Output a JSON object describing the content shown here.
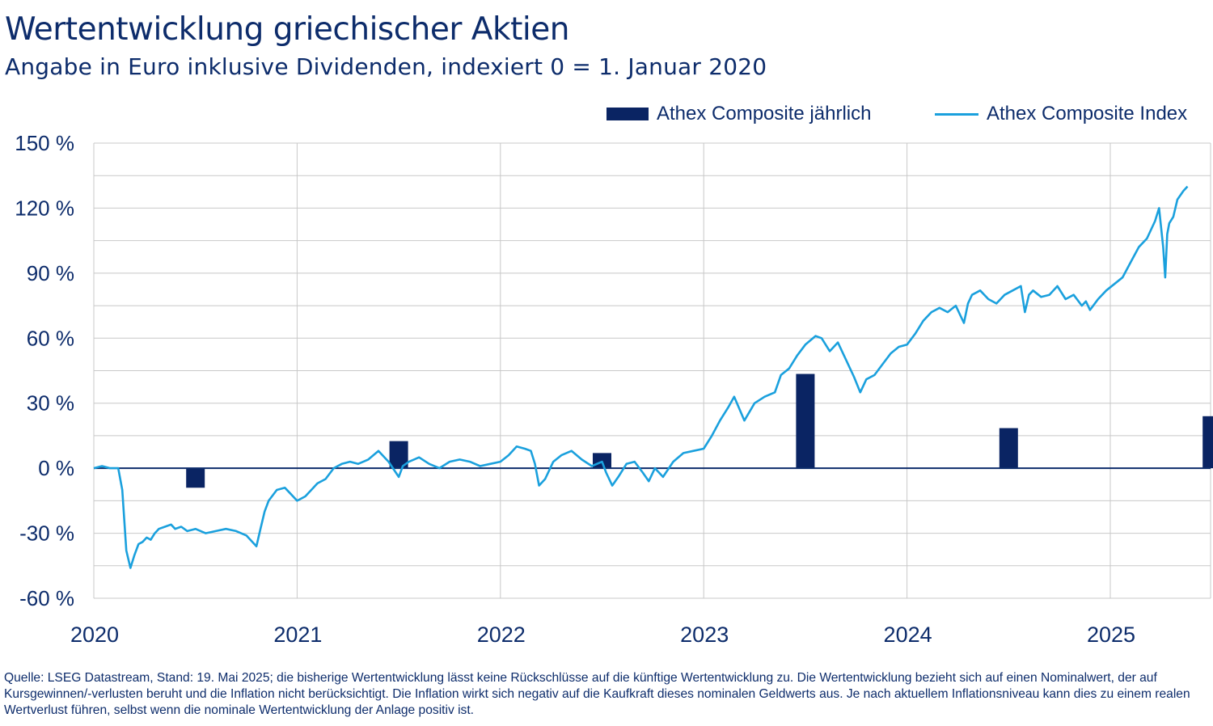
{
  "header": {
    "title": "Wertentwicklung griechischer Aktien",
    "subtitle": "Angabe in Euro inklusive Dividenden, indexiert 0 = 1. Januar 2020"
  },
  "legend": {
    "bar_label": "Athex Composite jährlich",
    "line_label": "Athex Composite Index"
  },
  "colors": {
    "bars": "#0a2463",
    "line": "#1aa0dd",
    "text": "#0d2c6b",
    "grid": "#c8c8c8",
    "zero_line": "#0d2c6b"
  },
  "footnote": "Quelle: LSEG Datastream, Stand: 19. Mai 2025; die bisherige Wertentwicklung lässt keine Rückschlüsse auf die künftige Wertentwicklung zu. Die Wertentwicklung bezieht sich auf einen Nominalwert, der auf Kursgewinnen/-verlusten beruht und die Inflation nicht berücksichtigt. Die Inflation wirkt sich negativ auf die Kaufkraft dieses nominalen Geldwerts aus. Je nach aktuellem Inflationsniveau kann dies zu einem realen Wertverlust führen, selbst wenn die nominale Wertentwicklung der Anlage positiv ist.",
  "chart_data": {
    "type": "bar+line",
    "ylim": [
      -60,
      150
    ],
    "y_ticks": [
      150,
      120,
      90,
      60,
      30,
      0,
      -30,
      -60
    ],
    "y_tick_labels": [
      "150 %",
      "120 %",
      "90 %",
      "60 %",
      "30 %",
      "0 %",
      "-30 %",
      "-60 %"
    ],
    "y_minor_gridlines": [
      135,
      105,
      75,
      45,
      15,
      -15,
      -45
    ],
    "xlim": [
      2020.0,
      2025.5
    ],
    "x_ticks": [
      "2020",
      "2021",
      "2022",
      "2023",
      "2024",
      "2025"
    ],
    "grid": true,
    "legend_position": "top-right",
    "bars": {
      "name": "Athex Composite jährlich",
      "x": [
        "2020",
        "2021",
        "2022",
        "2023",
        "2024",
        "2025"
      ],
      "values": [
        -9,
        12.5,
        7,
        43.5,
        18.5,
        24
      ]
    },
    "line": {
      "name": "Athex Composite Index",
      "x": [
        2020.0,
        2020.04,
        2020.08,
        2020.12,
        2020.14,
        2020.16,
        2020.18,
        2020.2,
        2020.22,
        2020.24,
        2020.26,
        2020.28,
        2020.3,
        2020.32,
        2020.35,
        2020.38,
        2020.4,
        2020.43,
        2020.46,
        2020.5,
        2020.55,
        2020.6,
        2020.65,
        2020.7,
        2020.75,
        2020.8,
        2020.82,
        2020.84,
        2020.86,
        2020.9,
        2020.94,
        2020.97,
        2021.0,
        2021.04,
        2021.07,
        2021.1,
        2021.14,
        2021.18,
        2021.22,
        2021.26,
        2021.3,
        2021.35,
        2021.4,
        2021.45,
        2021.5,
        2021.52,
        2021.55,
        2021.6,
        2021.65,
        2021.7,
        2021.75,
        2021.8,
        2021.85,
        2021.9,
        2021.95,
        2022.0,
        2022.04,
        2022.08,
        2022.12,
        2022.15,
        2022.17,
        2022.19,
        2022.22,
        2022.26,
        2022.3,
        2022.35,
        2022.4,
        2022.45,
        2022.5,
        2022.52,
        2022.55,
        2022.58,
        2022.62,
        2022.66,
        2022.7,
        2022.73,
        2022.76,
        2022.8,
        2022.85,
        2022.9,
        2022.95,
        2023.0,
        2023.04,
        2023.08,
        2023.12,
        2023.15,
        2023.2,
        2023.25,
        2023.3,
        2023.35,
        2023.38,
        2023.42,
        2023.46,
        2023.5,
        2023.55,
        2023.58,
        2023.62,
        2023.66,
        2023.7,
        2023.74,
        2023.77,
        2023.8,
        2023.84,
        2023.88,
        2023.92,
        2023.96,
        2024.0,
        2024.04,
        2024.08,
        2024.12,
        2024.16,
        2024.2,
        2024.24,
        2024.28,
        2024.3,
        2024.32,
        2024.36,
        2024.4,
        2024.44,
        2024.48,
        2024.52,
        2024.56,
        2024.58,
        2024.6,
        2024.62,
        2024.66,
        2024.7,
        2024.74,
        2024.78,
        2024.82,
        2024.86,
        2024.88,
        2024.9,
        2024.94,
        2024.98,
        2025.02,
        2025.06,
        2025.1,
        2025.14,
        2025.18,
        2025.22,
        2025.24,
        2025.26,
        2025.27,
        2025.28,
        2025.29,
        2025.31,
        2025.33,
        2025.36,
        2025.38
      ],
      "values": [
        0,
        1,
        0,
        0,
        -10,
        -38,
        -46,
        -40,
        -35,
        -34,
        -32,
        -33,
        -30,
        -28,
        -27,
        -26,
        -28,
        -27,
        -29,
        -28,
        -30,
        -29,
        -28,
        -29,
        -31,
        -36,
        -28,
        -20,
        -15,
        -10,
        -9,
        -12,
        -15,
        -13,
        -10,
        -7,
        -5,
        0,
        2,
        3,
        2,
        4,
        8,
        3,
        -4,
        1,
        3,
        5,
        2,
        0,
        3,
        4,
        3,
        1,
        2,
        3,
        6,
        10,
        9,
        8,
        2,
        -8,
        -5,
        3,
        6,
        8,
        4,
        1,
        3,
        -2,
        -8,
        -4,
        2,
        3,
        -2,
        -6,
        0,
        -4,
        3,
        7,
        8,
        9,
        15,
        22,
        28,
        33,
        22,
        30,
        33,
        35,
        43,
        46,
        52,
        57,
        61,
        60,
        54,
        58,
        50,
        42,
        35,
        41,
        43,
        48,
        53,
        56,
        57,
        62,
        68,
        72,
        74,
        72,
        75,
        67,
        76,
        80,
        82,
        78,
        76,
        80,
        82,
        84,
        72,
        80,
        82,
        79,
        80,
        84,
        78,
        80,
        75,
        77,
        73,
        78,
        82,
        85,
        88,
        95,
        102,
        106,
        114,
        120,
        102,
        88,
        108,
        113,
        116,
        124,
        128,
        130
      ]
    }
  }
}
